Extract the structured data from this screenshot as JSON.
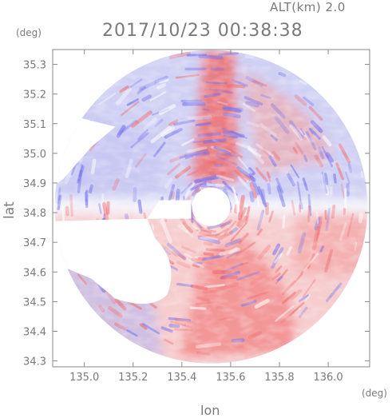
{
  "header": {
    "altitude_label": "ALT(km) 2.0",
    "datetime": "2017/10/23 00:38:38"
  },
  "chart_data": {
    "type": "heatmap",
    "xlabel": "lon",
    "ylabel": "lat",
    "x_unit": "(deg)",
    "y_unit": "(deg)",
    "xlim": [
      134.87,
      136.17
    ],
    "ylim": [
      34.28,
      35.35
    ],
    "x_ticks": [
      "135.0",
      "135.2",
      "135.4",
      "135.6",
      "135.8",
      "136.0"
    ],
    "y_ticks": [
      "34.3",
      "34.4",
      "34.5",
      "34.6",
      "34.7",
      "34.8",
      "34.9",
      "35.0",
      "35.1",
      "35.2",
      "35.3"
    ],
    "radar_center": {
      "lon": 135.52,
      "lat": 34.82
    },
    "grid": false,
    "colors": {
      "positive": "#f06a6a",
      "negative": "#6b6bef",
      "neutral": "#f4f4fb",
      "axis": "#8a8a8a"
    }
  }
}
